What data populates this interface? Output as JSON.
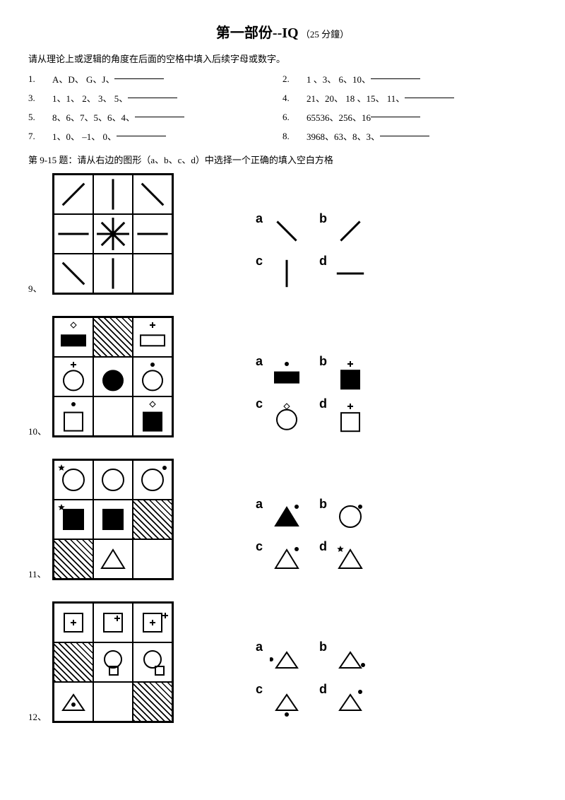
{
  "title_main": "第一部份--IQ",
  "title_sub": "（25 分鐘）",
  "instruction": "请从理论上或逻辑的角度在后面的空格中填入后续字母或数字。",
  "sequences": [
    {
      "n": "1.",
      "t": "A、D、 G、J、"
    },
    {
      "n": "2.",
      "t": "1 、3、 6、10、"
    },
    {
      "n": "3.",
      "t": "1、1、 2、 3、 5、"
    },
    {
      "n": "4.",
      "t": "21、20、 18 、15、 11、"
    },
    {
      "n": "5.",
      "t": "8、6、7、5、6、4、"
    },
    {
      "n": "6.",
      "t": "65536、256、16"
    },
    {
      "n": "7.",
      "t": "1、0、  –1、 0、"
    },
    {
      "n": "8.",
      "t": "3968、63、8、3、"
    }
  ],
  "fig_instruction": "第 9-15 题：请从右边的图形（a、b、c、d）中选择一个正确的填入空白方格",
  "labels": {
    "a": "a",
    "b": "b",
    "c": "c",
    "d": "d"
  },
  "q9": {
    "num": "9、",
    "grid": [
      {
        "t": "line",
        "ang": 45
      },
      {
        "t": "line",
        "ang": 90
      },
      {
        "t": "line",
        "ang": 135
      },
      {
        "t": "line",
        "ang": 0
      },
      {
        "t": "star8"
      },
      {
        "t": "line",
        "ang": 0
      },
      {
        "t": "line",
        "ang": 135
      },
      {
        "t": "line",
        "ang": 90
      },
      {
        "t": "blank"
      }
    ],
    "opts": [
      {
        "t": "line",
        "ang": 135
      },
      {
        "t": "line",
        "ang": 45
      },
      {
        "t": "line",
        "ang": 90
      },
      {
        "t": "line",
        "ang": 0
      }
    ]
  },
  "q10": {
    "num": "10、",
    "grid": [
      {
        "top": "diamond",
        "main": "rect",
        "fill": 1
      },
      {
        "hatch": 1
      },
      {
        "top": "plus",
        "main": "rect",
        "fill": 0
      },
      {
        "top": "plus",
        "main": "circ",
        "fill": 0
      },
      {
        "main": "circ",
        "fill": 1
      },
      {
        "top": "dot",
        "main": "circ",
        "fill": 0
      },
      {
        "top": "dot",
        "main": "sq",
        "fill": 0
      },
      {
        "blank": 1
      },
      {
        "top": "diamond",
        "main": "sq",
        "fill": 1
      }
    ],
    "opts": [
      {
        "top": "dot",
        "main": "rect",
        "fill": 1
      },
      {
        "top": "plus",
        "main": "sq",
        "fill": 1
      },
      {
        "top": "diamond",
        "main": "circ",
        "fill": 0
      },
      {
        "top": "plus",
        "main": "sq",
        "fill": 0
      }
    ]
  },
  "q11": {
    "num": "11、",
    "grid": [
      {
        "corner": "star",
        "main": "circ"
      },
      {
        "main": "circ"
      },
      {
        "corner": "dot",
        "cpos": "tr",
        "main": "circ"
      },
      {
        "corner": "star",
        "main": "sq",
        "fill": 1
      },
      {
        "main": "sq",
        "fill": 1
      },
      {
        "hatch": 1
      },
      {
        "hatch": 1
      },
      {
        "main": "tri"
      },
      {
        "blank": 1
      }
    ],
    "opts": [
      {
        "corner": "dot",
        "cpos": "tr",
        "main": "tri",
        "fill": 1
      },
      {
        "corner": "dot",
        "cpos": "tr",
        "main": "circ"
      },
      {
        "corner": "dot",
        "cpos": "tr",
        "main": "tri"
      },
      {
        "corner": "star",
        "main": "tri"
      }
    ]
  },
  "q12": {
    "num": "12、",
    "grid": [
      {
        "main": "sq",
        "inner": "plus",
        "ipos": "c"
      },
      {
        "main": "sq",
        "inner": "plus",
        "ipos": "tr"
      },
      {
        "main": "sq",
        "outer": "plus"
      },
      {
        "hatch": 1
      },
      {
        "main": "circ",
        "below": "sq"
      },
      {
        "main": "circ",
        "below": "sq",
        "bpos": "r"
      },
      {
        "main": "tri",
        "inner": "dot"
      },
      {
        "blank": 1
      },
      {
        "hatch": 1
      }
    ],
    "opts": [
      {
        "outer": "dot",
        "opos": "l",
        "main": "tri"
      },
      {
        "main": "tri",
        "rdot": 1
      },
      {
        "main": "tri",
        "bdot": 1
      },
      {
        "outer": "dot",
        "opos": "tr",
        "main": "tri"
      }
    ]
  }
}
